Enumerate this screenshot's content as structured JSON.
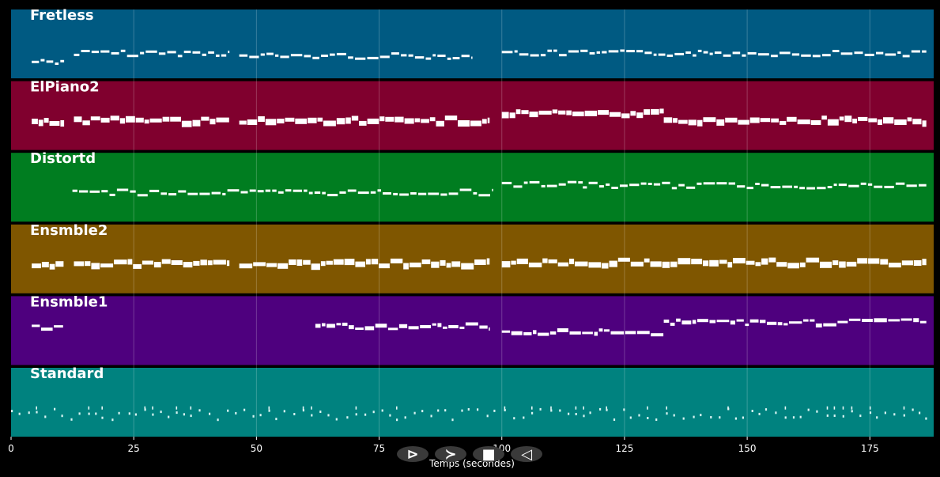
{
  "chart_data": {
    "type": "piano-roll",
    "xlabel": "Temps (secondes)",
    "xlim": [
      0,
      188
    ],
    "x_ticks": [
      0,
      25,
      50,
      75,
      100,
      125,
      150,
      175
    ],
    "grid": true,
    "tracks": [
      {
        "name": "Fretless",
        "color": "#005a82",
        "segments": [
          [
            4.2,
            10.8
          ],
          [
            12.8,
            44.5
          ],
          [
            46.5,
            94
          ],
          [
            100,
            186.5
          ]
        ],
        "wave": [
          0.74,
          0.62,
          0.66,
          0.62
        ],
        "density": "sparse"
      },
      {
        "name": "ElPiano2",
        "color": "#80002e",
        "segments": [
          [
            4.2,
            10.8
          ],
          [
            12.8,
            44.5
          ],
          [
            46.5,
            97.5
          ],
          [
            100,
            133
          ],
          [
            133,
            186.5
          ]
        ],
        "wave": [
          0.56,
          0.54,
          0.54,
          0.44,
          0.54
        ],
        "density": "dense"
      },
      {
        "name": "Distortd",
        "color": "#007d20",
        "segments": [
          [
            12.5,
            98
          ],
          [
            100,
            116.5
          ],
          [
            116.5,
            186.5
          ]
        ],
        "wave": [
          0.56,
          0.44,
          0.46
        ],
        "density": "sparse"
      },
      {
        "name": "Ensmble2",
        "color": "#7f5600",
        "segments": [
          [
            4.2,
            10.8
          ],
          [
            12.8,
            44.5
          ],
          [
            46.5,
            97.5
          ],
          [
            100,
            186.5
          ]
        ],
        "wave": [
          0.54,
          0.54,
          0.53,
          0.52
        ],
        "density": "dense"
      },
      {
        "name": "Ensmble1",
        "color": "#4e007e",
        "segments": [
          [
            4.2,
            10.8
          ],
          [
            62,
            97.5
          ],
          [
            100,
            133
          ],
          [
            133,
            186.5
          ]
        ],
        "wave": [
          0.44,
          0.42,
          0.5,
          0.36
        ],
        "density": "medium"
      },
      {
        "name": "Standard",
        "color": "#00827f",
        "segments": [
          [
            0,
            187
          ]
        ],
        "wave": [
          0.66
        ],
        "density": "percussion"
      }
    ]
  },
  "controls": [
    {
      "name": "play-forward-button",
      "glyph": "⊳"
    },
    {
      "name": "fast-forward-button",
      "glyph": "≻"
    },
    {
      "name": "stop-button",
      "glyph": "■"
    },
    {
      "name": "play-backward-button",
      "glyph": "◁"
    }
  ]
}
